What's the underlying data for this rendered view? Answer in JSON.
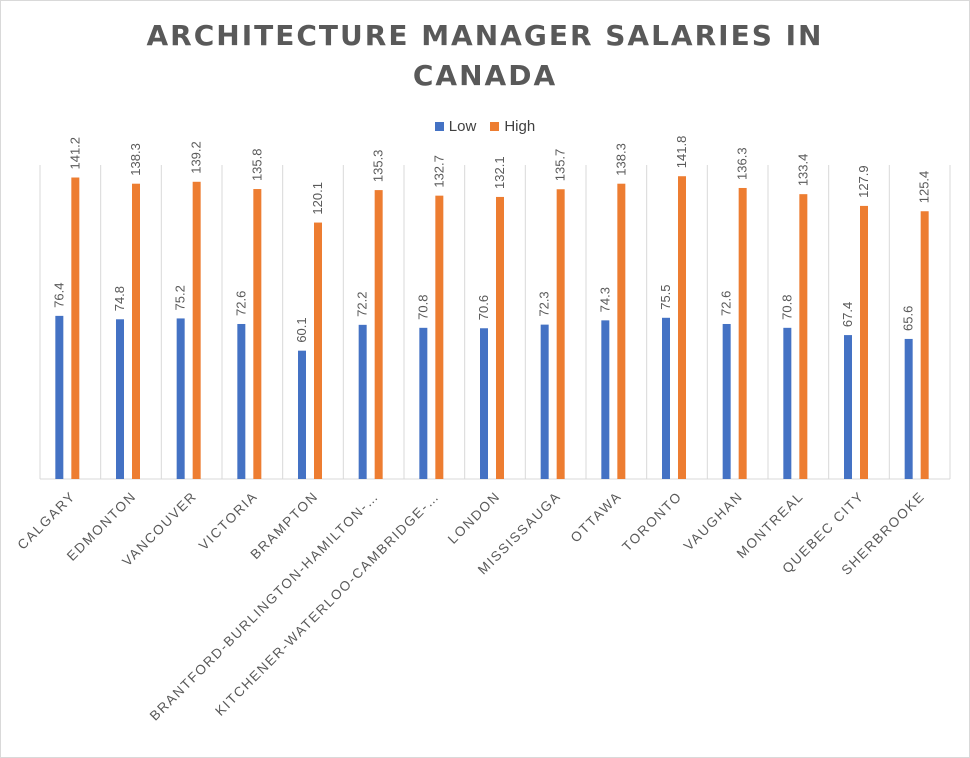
{
  "chart_data": {
    "type": "bar",
    "title_line1": "ARCHITECTURE MANAGER SALARIES IN",
    "title_line2": "CANADA",
    "xlabel": "",
    "ylabel": "",
    "ylim": [
      0,
      150
    ],
    "grid": "vertical category lines",
    "legend_position": "top",
    "categories": [
      "CALGARY",
      "EDMONTON",
      "VANCOUVER",
      "VICTORIA",
      "BRAMPTON",
      "BRANTFORD-BURLINGTON-HAMILTON-…",
      "KITCHENER-WATERLOO-CAMBRIDGE-…",
      "LONDON",
      "MISSISSAUGA",
      "OTTAWA",
      "TORONTO",
      "VAUGHAN",
      "MONTREAL",
      "QUEBEC CITY",
      "SHERBROOKE"
    ],
    "series": [
      {
        "name": "Low",
        "color": "#4472C4",
        "values": [
          76.4,
          74.8,
          75.2,
          72.6,
          60.1,
          72.2,
          70.8,
          70.6,
          72.3,
          74.3,
          75.5,
          72.6,
          70.8,
          67.4,
          65.6
        ]
      },
      {
        "name": "High",
        "color": "#ED7D31",
        "values": [
          141.2,
          138.3,
          139.2,
          135.8,
          120.1,
          135.3,
          132.7,
          132.1,
          135.7,
          138.3,
          141.8,
          136.3,
          133.4,
          127.9,
          125.4
        ]
      }
    ]
  }
}
